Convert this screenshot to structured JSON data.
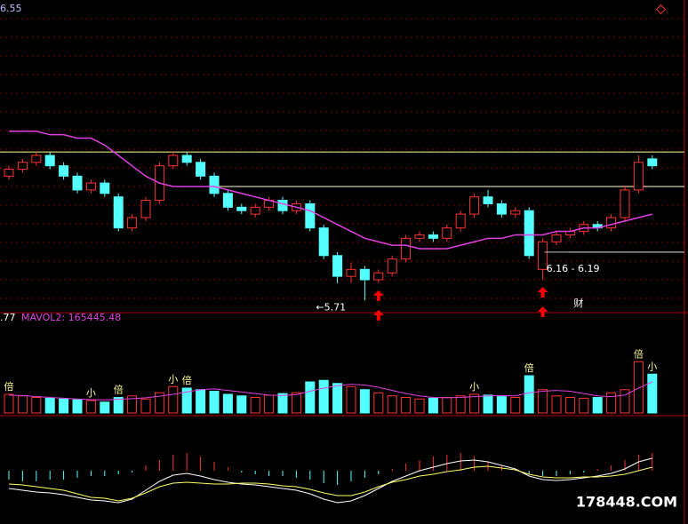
{
  "chart_data": {
    "type": "candlestick",
    "price_label_top": "6.55",
    "up_color": "#ff3232",
    "down_color": "#54ffff",
    "ma_color": "#e040e0",
    "ylim": [
      5.68,
      6.58
    ],
    "open": [
      6.07,
      6.09,
      6.11,
      6.13,
      6.1,
      6.07,
      6.03,
      6.05,
      6.01,
      5.92,
      5.95,
      6.0,
      6.1,
      6.13,
      6.11,
      6.07,
      6.02,
      5.98,
      5.96,
      5.98,
      6.0,
      5.97,
      5.99,
      5.92,
      5.84,
      5.78,
      5.8,
      5.77,
      5.79,
      5.83,
      5.89,
      5.9,
      5.89,
      5.92,
      5.96,
      6.01,
      5.99,
      5.96,
      5.97,
      5.8,
      5.88,
      5.9,
      5.91,
      5.93,
      5.92,
      5.95,
      6.03,
      6.12
    ],
    "high": [
      6.1,
      6.12,
      6.14,
      6.14,
      6.11,
      6.08,
      6.06,
      6.06,
      6.02,
      5.96,
      6.01,
      6.11,
      6.14,
      6.14,
      6.12,
      6.08,
      6.03,
      5.99,
      5.99,
      6.01,
      6.01,
      6.0,
      6.0,
      5.93,
      5.85,
      5.82,
      5.81,
      5.8,
      5.84,
      5.9,
      5.91,
      5.91,
      5.93,
      5.97,
      6.02,
      6.03,
      6.0,
      5.98,
      5.98,
      5.89,
      5.91,
      5.92,
      5.94,
      5.94,
      5.96,
      6.04,
      6.13,
      6.13
    ],
    "low": [
      6.06,
      6.08,
      6.1,
      6.09,
      6.06,
      6.02,
      6.02,
      6.01,
      5.91,
      5.91,
      5.94,
      5.99,
      6.09,
      6.1,
      6.06,
      6.01,
      5.97,
      5.96,
      5.95,
      5.97,
      5.96,
      5.96,
      5.91,
      5.83,
      5.76,
      5.76,
      5.71,
      5.76,
      5.78,
      5.82,
      5.88,
      5.88,
      5.88,
      5.91,
      5.95,
      5.98,
      5.95,
      5.95,
      5.83,
      5.77,
      5.87,
      5.89,
      5.9,
      5.91,
      5.91,
      5.94,
      6.02,
      6.09
    ],
    "close": [
      6.09,
      6.11,
      6.13,
      6.1,
      6.07,
      6.03,
      6.05,
      6.02,
      5.92,
      5.95,
      6.0,
      6.1,
      6.13,
      6.11,
      6.07,
      6.02,
      5.98,
      5.97,
      5.98,
      6.0,
      5.97,
      5.99,
      5.92,
      5.84,
      5.78,
      5.8,
      5.77,
      5.79,
      5.83,
      5.89,
      5.9,
      5.89,
      5.92,
      5.96,
      6.01,
      5.99,
      5.96,
      5.97,
      5.84,
      5.88,
      5.9,
      5.91,
      5.93,
      5.92,
      5.95,
      6.03,
      6.11,
      6.1
    ],
    "ma": [
      6.2,
      6.2,
      6.2,
      6.19,
      6.19,
      6.18,
      6.18,
      6.16,
      6.13,
      6.1,
      6.07,
      6.05,
      6.04,
      6.04,
      6.04,
      6.04,
      6.03,
      6.02,
      6.01,
      6.0,
      5.99,
      5.98,
      5.97,
      5.95,
      5.93,
      5.91,
      5.89,
      5.88,
      5.87,
      5.87,
      5.86,
      5.86,
      5.86,
      5.87,
      5.88,
      5.89,
      5.89,
      5.9,
      5.9,
      5.9,
      5.91,
      5.91,
      5.92,
      5.92,
      5.93,
      5.94,
      5.95,
      5.96
    ],
    "hlines": [
      {
        "value": 6.14,
        "color": "#ffff99"
      },
      {
        "value": 6.04,
        "color": "#ffffcc"
      },
      {
        "value": 5.85,
        "color": "#c0c0c0"
      }
    ],
    "annotations": [
      {
        "text": "←5.71",
        "at": 26
      },
      {
        "text": "6.16 - 6.19",
        "at": 39
      },
      {
        "text": "财",
        "at": 41
      }
    ],
    "signals": [
      27,
      39
    ],
    "volume": {
      "legend_prefix": ".77",
      "legend": "MAVOL2: 165445.48",
      "ylim": [
        0,
        600000
      ],
      "values": [
        120000,
        110000,
        100000,
        95000,
        90000,
        85000,
        80000,
        70000,
        100000,
        110000,
        90000,
        130000,
        170000,
        160000,
        150000,
        140000,
        120000,
        110000,
        100000,
        115000,
        125000,
        130000,
        200000,
        210000,
        190000,
        170000,
        150000,
        130000,
        110000,
        100000,
        90000,
        95000,
        100000,
        110000,
        120000,
        115000,
        105000,
        100000,
        240000,
        150000,
        110000,
        100000,
        95000,
        100000,
        130000,
        150000,
        330000,
        250000
      ],
      "mavol": [
        115000,
        112000,
        106000,
        100000,
        95000,
        90000,
        86000,
        84000,
        88000,
        92000,
        98000,
        108000,
        120000,
        135000,
        150000,
        155000,
        145000,
        135000,
        125000,
        115000,
        112000,
        118000,
        140000,
        160000,
        175000,
        185000,
        180000,
        165000,
        145000,
        125000,
        110000,
        100000,
        98000,
        100000,
        105000,
        110000,
        112000,
        110000,
        130000,
        140000,
        145000,
        140000,
        125000,
        110000,
        105000,
        115000,
        160000,
        200000
      ],
      "tags": [
        {
          "text": "倍",
          "at": 0
        },
        {
          "text": "小",
          "at": 6
        },
        {
          "text": "倍",
          "at": 8
        },
        {
          "text": "小",
          "at": 12
        },
        {
          "text": "倍",
          "at": 13
        },
        {
          "text": "小",
          "at": 34
        },
        {
          "text": "倍",
          "at": 38
        },
        {
          "text": "倍",
          "at": 46
        },
        {
          "text": "小",
          "at": 47
        }
      ]
    },
    "macd": {
      "ylim": [
        -0.06,
        0.06
      ],
      "hist": [
        -0.01,
        -0.012,
        -0.012,
        -0.01,
        -0.01,
        -0.008,
        -0.006,
        -0.006,
        -0.004,
        -0.002,
        0.006,
        0.012,
        0.018,
        0.02,
        0.016,
        0.01,
        0.004,
        -0.002,
        -0.004,
        -0.006,
        -0.006,
        -0.008,
        -0.01,
        -0.014,
        -0.016,
        -0.012,
        -0.008,
        -0.004,
        0.002,
        0.008,
        0.012,
        0.016,
        0.018,
        0.02,
        0.016,
        0.01,
        0.006,
        0.002,
        -0.004,
        -0.006,
        -0.006,
        -0.004,
        -0.002,
        0.002,
        0.006,
        0.012,
        0.018,
        0.02
      ],
      "dif": [
        -0.02,
        -0.022,
        -0.024,
        -0.025,
        -0.027,
        -0.03,
        -0.033,
        -0.034,
        -0.036,
        -0.032,
        -0.022,
        -0.012,
        -0.005,
        -0.003,
        -0.006,
        -0.01,
        -0.013,
        -0.015,
        -0.016,
        -0.018,
        -0.02,
        -0.022,
        -0.026,
        -0.032,
        -0.036,
        -0.034,
        -0.028,
        -0.02,
        -0.012,
        -0.006,
        0,
        0.004,
        0.008,
        0.011,
        0.012,
        0.01,
        0.006,
        0.002,
        -0.006,
        -0.01,
        -0.011,
        -0.01,
        -0.008,
        -0.006,
        -0.003,
        0.002,
        0.01,
        0.014
      ],
      "dea": [
        -0.015,
        -0.016,
        -0.018,
        -0.02,
        -0.022,
        -0.026,
        -0.03,
        -0.031,
        -0.034,
        -0.031,
        -0.025,
        -0.018,
        -0.014,
        -0.013,
        -0.014,
        -0.015,
        -0.015,
        -0.014,
        -0.014,
        -0.015,
        -0.017,
        -0.018,
        -0.021,
        -0.025,
        -0.028,
        -0.028,
        -0.024,
        -0.018,
        -0.013,
        -0.01,
        -0.006,
        -0.004,
        -0.001,
        0.001,
        0.004,
        0.005,
        0.003,
        0.001,
        -0.004,
        -0.007,
        -0.008,
        -0.008,
        -0.007,
        -0.007,
        -0.006,
        -0.004,
        0,
        0.004
      ],
      "dif_color": "#ffffff",
      "dea_color": "#ffff66"
    },
    "watermark": "178448.COM"
  }
}
